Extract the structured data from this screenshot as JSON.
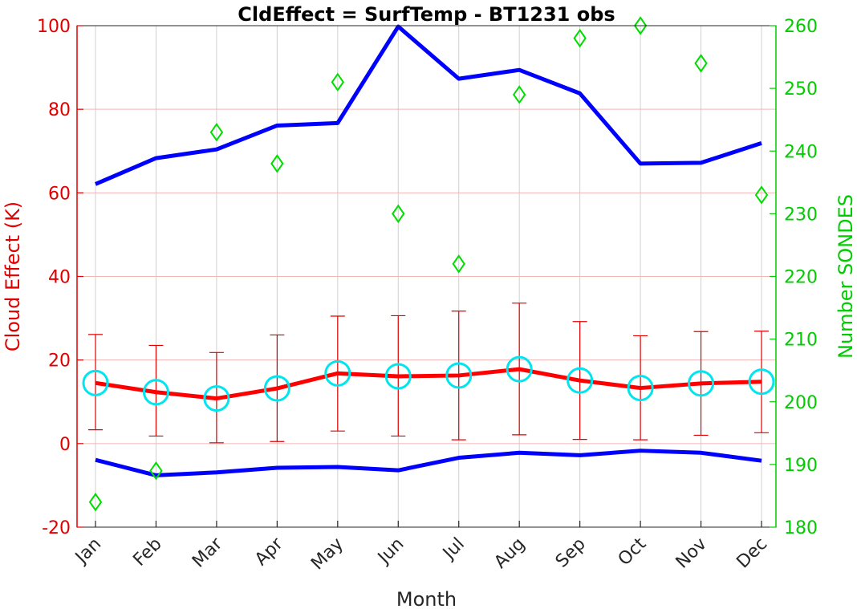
{
  "chart_data": {
    "type": "line",
    "title": "CldEffect = SurfTemp - BT1231 obs",
    "xlabel": "Month",
    "ylabel": "Cloud Effect (K)",
    "ylabel_right": "Number SONDES",
    "categories": [
      "Jan",
      "Feb",
      "Mar",
      "Apr",
      "May",
      "Jun",
      "Jul",
      "Aug",
      "Sep",
      "Oct",
      "Nov",
      "Dec"
    ],
    "ylim": [
      -20,
      100
    ],
    "yticks": [
      -20,
      0,
      20,
      40,
      60,
      80,
      100
    ],
    "ylim_right": [
      180,
      260
    ],
    "yticks_right": [
      180,
      190,
      200,
      210,
      220,
      230,
      240,
      250,
      260
    ],
    "grid": true,
    "colors": {
      "mean": "#ff0000",
      "errorbars": "#e00000",
      "minmax": "#0000ff",
      "markers": "#00e5ee",
      "sondes": "#00dd00",
      "left_axis": "#e00000",
      "right_axis": "#00cc00",
      "grid_x": "#d0d0d0",
      "grid_y": "#f4b4b4"
    },
    "series": [
      {
        "role": "mean",
        "values": [
          14.5,
          12.3,
          10.8,
          13.2,
          16.8,
          16.1,
          16.3,
          17.8,
          15.1,
          13.3,
          14.4,
          14.8
        ],
        "error_low": [
          3.3,
          1.8,
          0.2,
          0.5,
          3.0,
          1.8,
          0.9,
          2.1,
          1.0,
          0.9,
          2.0,
          2.6
        ],
        "error_high": [
          26.1,
          23.5,
          21.8,
          26.0,
          30.5,
          30.6,
          31.7,
          33.6,
          29.2,
          25.8,
          26.8,
          26.9
        ],
        "axis": "left"
      },
      {
        "role": "max",
        "values": [
          62.1,
          68.3,
          70.4,
          76.1,
          76.7,
          99.8,
          87.3,
          89.4,
          83.8,
          67.0,
          67.2,
          71.9
        ],
        "axis": "left"
      },
      {
        "role": "min",
        "values": [
          -3.9,
          -7.6,
          -6.9,
          -5.8,
          -5.6,
          -6.4,
          -3.4,
          -2.2,
          -2.8,
          -1.7,
          -2.2,
          -4.1
        ],
        "axis": "left"
      },
      {
        "role": "sondes",
        "values": [
          184,
          189,
          243,
          238,
          251,
          230,
          222,
          249,
          258,
          260,
          254,
          233
        ],
        "axis": "right"
      }
    ]
  }
}
